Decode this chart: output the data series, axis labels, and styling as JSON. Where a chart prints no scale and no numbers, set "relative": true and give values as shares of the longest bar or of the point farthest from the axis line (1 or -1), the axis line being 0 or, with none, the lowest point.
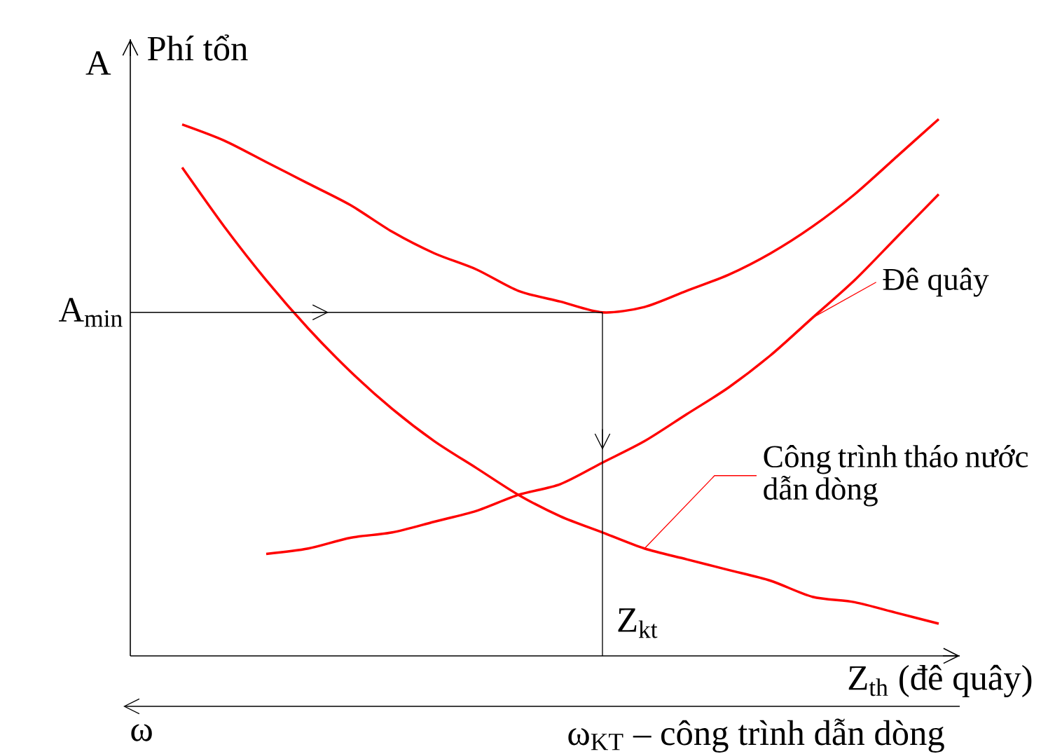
{
  "chart_data": {
    "type": "line",
    "relative": true,
    "ylabel": "A",
    "xlabel": "Z$_{th}$ (đê quây)",
    "categories": [
      null,
      null,
      null,
      null,
      null,
      null,
      null,
      null,
      null,
      null,
      null,
      null,
      null,
      null,
      null,
      null,
      null,
      null,
      null
    ],
    "series": [
      {
        "color": "#ff0000",
        "values": [
          0.99,
          0.96,
          0.92,
          0.88,
          0.84,
          0.79,
          0.75,
          0.72,
          0.68,
          0.66,
          0.64,
          0.65,
          0.68,
          0.71,
          0.75,
          0.8,
          0.86,
          0.93,
          1.0
        ]
      },
      {
        "name": "Đê quây",
        "color": "#ff0000",
        "values": [
          null,
          null,
          0.19,
          0.2,
          0.22,
          0.23,
          0.25,
          0.27,
          0.3,
          0.32,
          0.36,
          0.4,
          0.45,
          0.5,
          0.56,
          0.63,
          0.7,
          0.78,
          0.86
        ]
      },
      {
        "name": "Công trình tháo nước dẫn dòng",
        "color": "#ff0000",
        "values": [
          0.91,
          0.8,
          0.7,
          0.61,
          0.53,
          0.46,
          0.4,
          0.35,
          0.3,
          0.26,
          0.23,
          0.2,
          0.18,
          0.16,
          0.14,
          0.11,
          0.1,
          0.08,
          0.06
        ]
      }
    ],
    "ref_lines": [
      {
        "axis": "y",
        "value": 0.64,
        "label": "A$_{min}$"
      }
    ],
    "annotations": [
      "Phí tổn",
      "ω",
      "ω$_{KT}$ – công trình dẫn dòng",
      "Z$_{kt}$"
    ]
  }
}
